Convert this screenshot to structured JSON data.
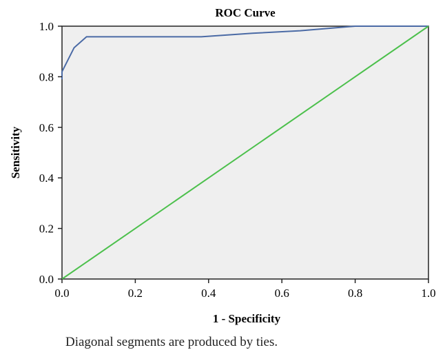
{
  "chart_data": {
    "type": "line",
    "title": "ROC Curve",
    "xlabel": "1 - Specificity",
    "ylabel": "Sensitivity",
    "xlim": [
      0,
      1
    ],
    "ylim": [
      0,
      1
    ],
    "xticks": [
      "0.0",
      "0.2",
      "0.4",
      "0.6",
      "0.8",
      "1.0"
    ],
    "yticks": [
      "0.0",
      "0.2",
      "0.4",
      "0.6",
      "0.8",
      "1.0"
    ],
    "grid": false,
    "series": [
      {
        "color": "#4a6aa5",
        "x": [
          0.0,
          0.0,
          0.033,
          0.067,
          0.38,
          0.52,
          0.65,
          0.8,
          1.0
        ],
        "y": [
          0.79,
          0.82,
          0.915,
          0.958,
          0.958,
          0.972,
          0.982,
          1.0,
          1.0
        ]
      },
      {
        "color": "#4cc04c",
        "x": [
          0.0,
          1.0
        ],
        "y": [
          0.0,
          1.0
        ]
      }
    ],
    "plot_background": "#efefef"
  },
  "footnote": "Diagonal segments are produced by ties."
}
